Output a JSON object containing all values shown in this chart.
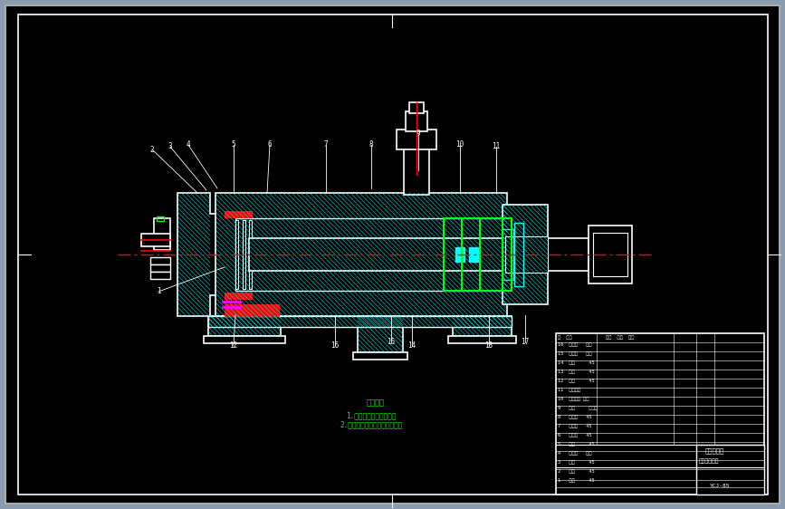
{
  "bg_color": "#000000",
  "fig_bg": "#8a9bb0",
  "cyan": "#00ffff",
  "white": "#ffffff",
  "red": "#ff0000",
  "green": "#00ff00",
  "magenta": "#ff00ff",
  "fig_width": 8.67,
  "fig_height": 5.62,
  "dpi": 100,
  "title_text": "技术要求",
  "note1": "1.密封圈采用耳形密封圈",
  "note2": "2.活塞杆密封圈采用山形密封圈"
}
